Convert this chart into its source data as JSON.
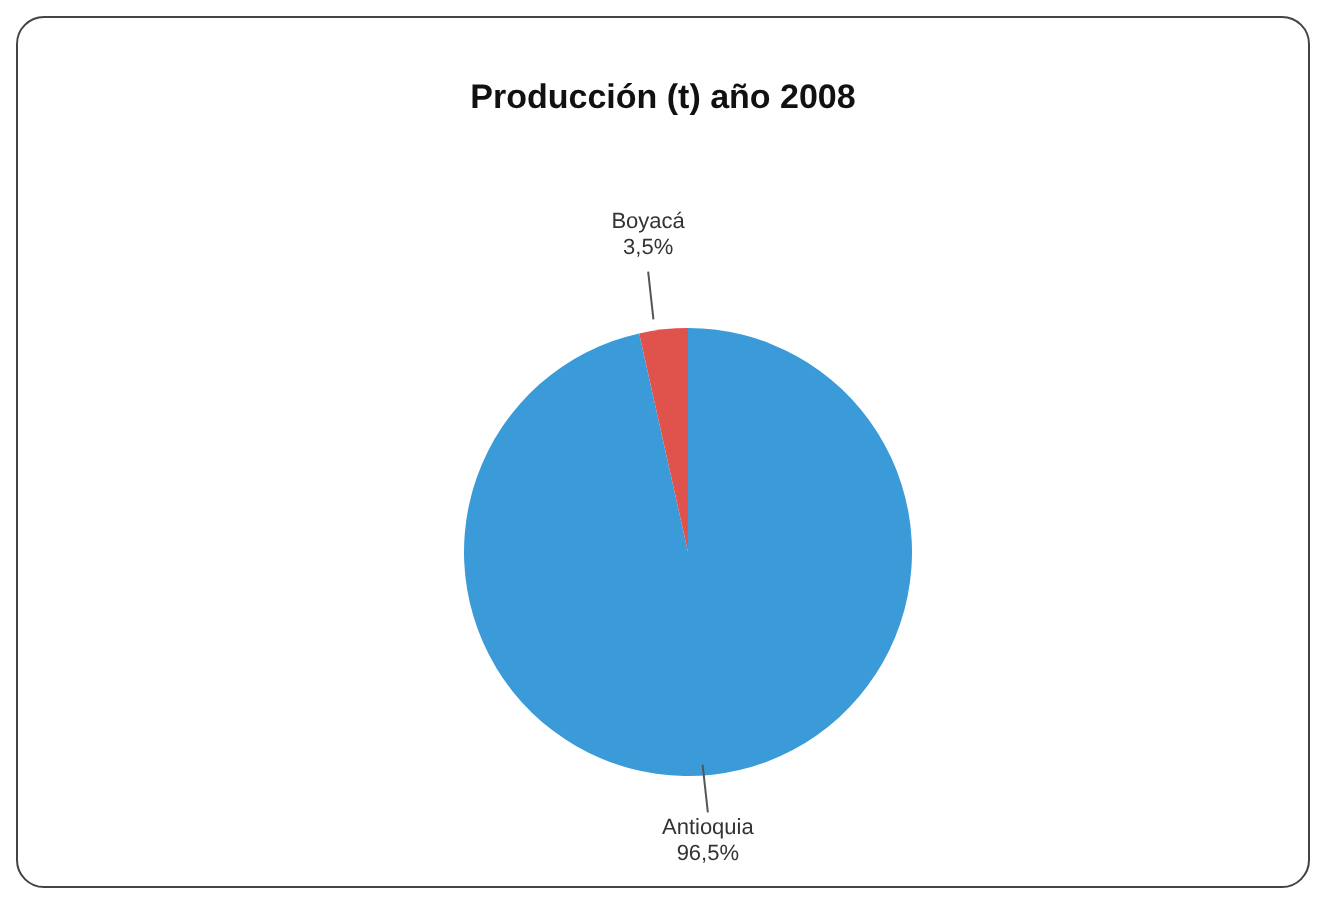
{
  "chart_data": {
    "type": "pie",
    "title": "Producción (t) año 2008",
    "categories": [
      "Antioquia",
      "Boyacá"
    ],
    "values": [
      96.5,
      3.5
    ],
    "value_labels": [
      "96,5%",
      "3,5%"
    ],
    "colors": [
      "#3b9bd8",
      "#e0524c"
    ],
    "legend": false
  }
}
